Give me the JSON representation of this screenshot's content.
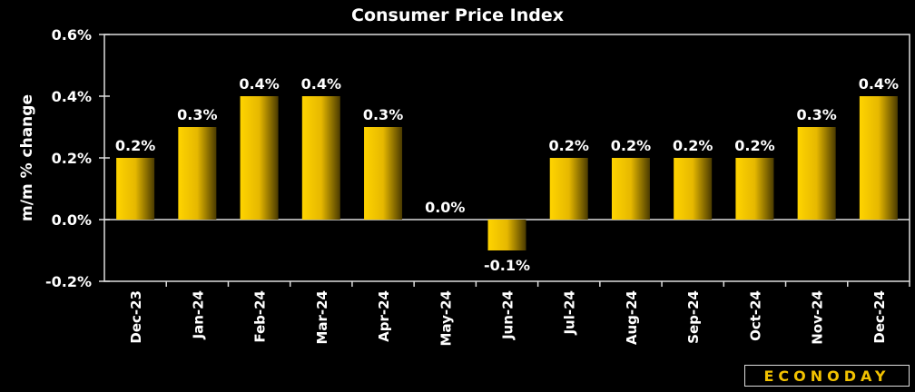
{
  "chart_data": {
    "type": "bar",
    "title": "Consumer Price Index",
    "xlabel": "",
    "ylabel": "m/m % change",
    "categories": [
      "Dec-23",
      "Jan-24",
      "Feb-24",
      "Mar-24",
      "Apr-24",
      "May-24",
      "Jun-24",
      "Jul-24",
      "Aug-24",
      "Sep-24",
      "Oct-24",
      "Nov-24",
      "Dec-24"
    ],
    "values": [
      0.2,
      0.3,
      0.4,
      0.4,
      0.3,
      0.0,
      -0.1,
      0.2,
      0.2,
      0.2,
      0.2,
      0.3,
      0.4
    ],
    "data_labels": [
      "0.2%",
      "0.3%",
      "0.4%",
      "0.4%",
      "0.3%",
      "0.0%",
      "-0.1%",
      "0.2%",
      "0.2%",
      "0.2%",
      "0.2%",
      "0.3%",
      "0.4%"
    ],
    "ylim": [
      -0.2,
      0.6
    ],
    "yticks": [
      -0.2,
      0.0,
      0.2,
      0.4,
      0.6
    ],
    "ytick_labels": [
      "-0.2%",
      "0.0%",
      "0.2%",
      "0.4%",
      "0.6%"
    ],
    "grid": false,
    "bar_color": "#f5c800"
  },
  "logo": "ECONODAY"
}
